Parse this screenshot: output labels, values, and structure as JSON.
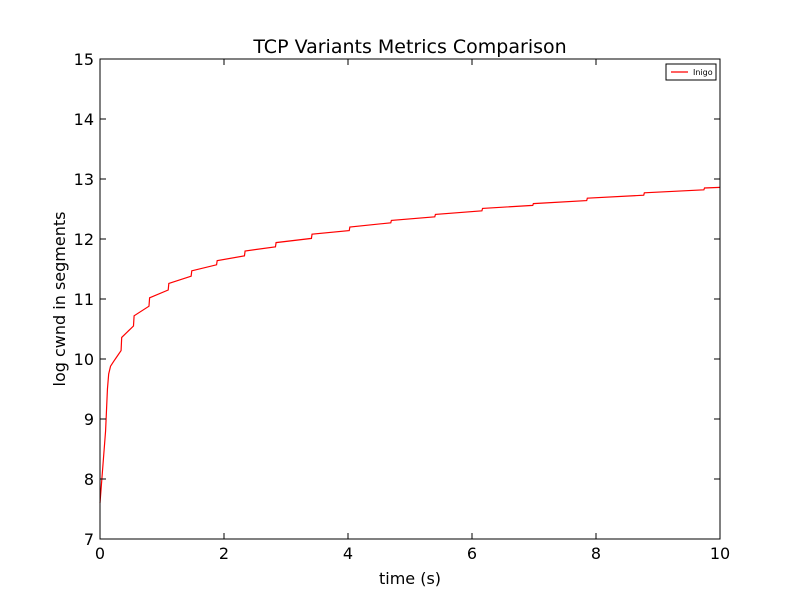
{
  "chart_data": {
    "type": "line",
    "title": "TCP Variants Metrics Comparison",
    "xlabel": "time (s)",
    "ylabel": "log cwnd in segments",
    "xlim": [
      0,
      10
    ],
    "ylim": [
      7,
      15
    ],
    "xticks": [
      0,
      2,
      4,
      6,
      8,
      10
    ],
    "yticks": [
      7,
      8,
      9,
      10,
      11,
      12,
      13,
      14,
      15
    ],
    "grid": false,
    "legend_position": "top-right",
    "series": [
      {
        "name": "Inigo",
        "color": "#ff0000",
        "x": [
          0,
          0.03,
          0.06,
          0.09,
          0.12,
          0.14,
          0.17,
          0.22,
          0.28,
          0.34,
          0.35,
          0.54,
          0.55,
          0.79,
          0.8,
          1.1,
          1.11,
          1.47,
          1.48,
          1.88,
          1.89,
          2.33,
          2.34,
          2.83,
          2.84,
          3.41,
          3.42,
          4.02,
          4.03,
          4.69,
          4.7,
          5.4,
          5.41,
          6.16,
          6.17,
          6.98,
          6.99,
          7.85,
          7.86,
          8.77,
          8.78,
          9.74,
          9.75,
          10.0
        ],
        "y": [
          7.6,
          8.0,
          8.4,
          8.8,
          9.5,
          9.75,
          9.88,
          9.96,
          10.05,
          10.14,
          10.36,
          10.55,
          10.72,
          10.88,
          11.02,
          11.15,
          11.26,
          11.38,
          11.47,
          11.57,
          11.64,
          11.72,
          11.8,
          11.87,
          11.94,
          12.01,
          12.08,
          12.14,
          12.2,
          12.27,
          12.31,
          12.37,
          12.41,
          12.47,
          12.51,
          12.56,
          12.59,
          12.64,
          12.68,
          12.73,
          12.77,
          12.82,
          12.85,
          12.86
        ]
      }
    ]
  }
}
